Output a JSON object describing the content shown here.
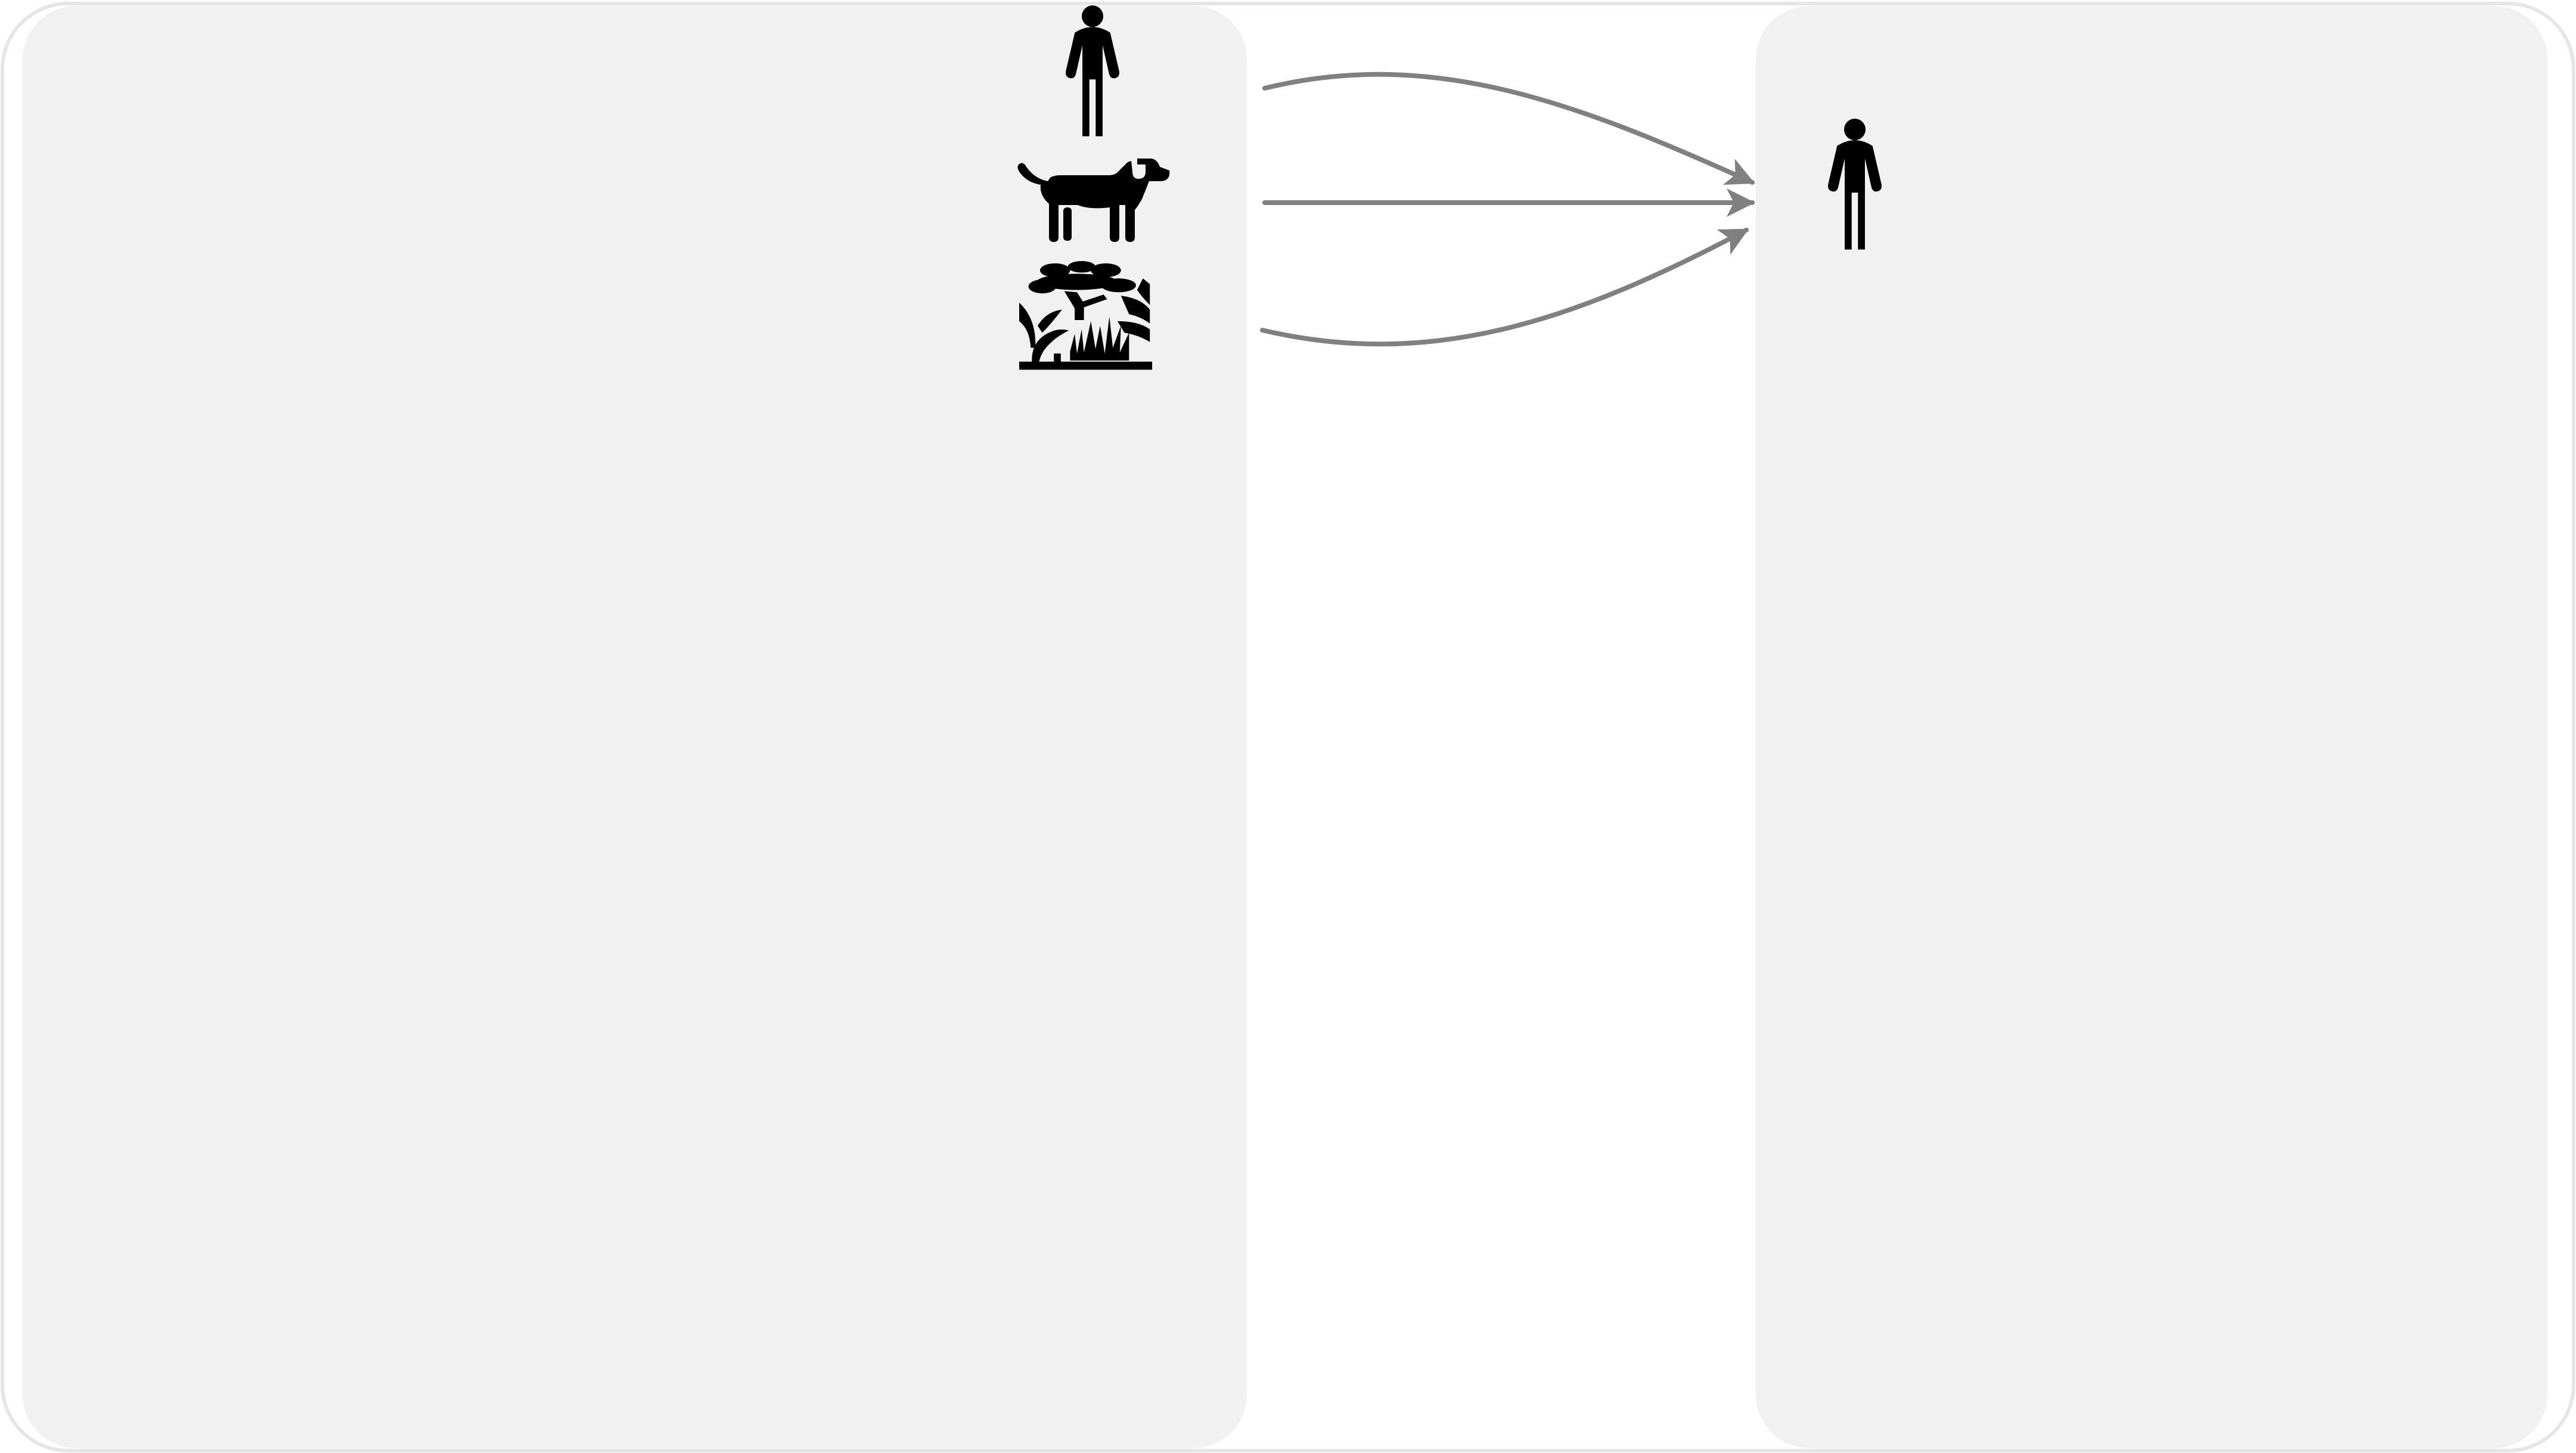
{
  "diagram": {
    "colors": {
      "background": "#ffffff",
      "outer_border": "#e6e6e6",
      "panel_fill": "#f1f1f1",
      "icon_fill": "#000000",
      "arrow_stroke": "#808080"
    },
    "left_panel": {
      "icons": [
        "person-icon",
        "dog-icon",
        "savanna-icon"
      ]
    },
    "right_panel": {
      "icons": [
        "person-icon"
      ]
    },
    "arrows": [
      {
        "from": "person-icon",
        "to": "person-icon"
      },
      {
        "from": "dog-icon",
        "to": "person-icon"
      },
      {
        "from": "savanna-icon",
        "to": "person-icon"
      }
    ]
  }
}
